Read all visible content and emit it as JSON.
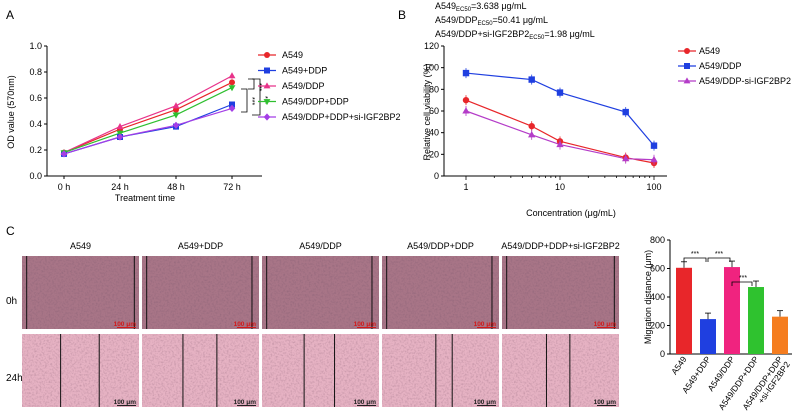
{
  "panels": {
    "A": "A",
    "B": "B",
    "C": "C"
  },
  "chart_data": [
    {
      "type": "line",
      "panel": "A",
      "ylabel": "OD value (570nm)",
      "xlabel": "Treatment time",
      "categories": [
        "0 h",
        "24 h",
        "48 h",
        "72 h"
      ],
      "ylim": [
        0.0,
        1.0
      ],
      "yticks": [
        "0.0",
        "0.2",
        "0.4",
        "0.6",
        "0.8",
        "1.0"
      ],
      "series": [
        {
          "name": "A549",
          "color": "#e8262a",
          "marker": "circle",
          "values": [
            0.18,
            0.36,
            0.51,
            0.72
          ]
        },
        {
          "name": "A549+DDP",
          "color": "#1f3fe0",
          "marker": "square",
          "values": [
            0.17,
            0.3,
            0.38,
            0.55
          ]
        },
        {
          "name": "A549/DDP",
          "color": "#e8338a",
          "marker": "triangle-up",
          "values": [
            0.18,
            0.38,
            0.54,
            0.77
          ]
        },
        {
          "name": "A549/DDP+DDP",
          "color": "#2fbf2f",
          "marker": "triangle-down",
          "values": [
            0.18,
            0.33,
            0.47,
            0.68
          ]
        },
        {
          "name": "A549/DDP+DDP+si-IGF2BP2",
          "color": "#a43ee6",
          "marker": "diamond",
          "values": [
            0.17,
            0.3,
            0.39,
            0.52
          ]
        }
      ],
      "annotations": [
        "***",
        "***",
        "***"
      ]
    },
    {
      "type": "line",
      "panel": "B",
      "ylabel": "Relative cell viability (%)",
      "xlabel": "Concentration (μg/mL)",
      "xscale": "log",
      "x": [
        1,
        5,
        10,
        50,
        100
      ],
      "xticks": [
        "1",
        "10",
        "100"
      ],
      "ylim": [
        0,
        120
      ],
      "yticks": [
        "0",
        "20",
        "40",
        "60",
        "80",
        "100",
        "120"
      ],
      "ec50_lines": [
        {
          "name": "A549",
          "sub": "EC50",
          "value": "=3.638 μg/mL"
        },
        {
          "name": "A549/DDP",
          "sub": "EC50",
          "value": "=50.41 μg/mL"
        },
        {
          "name": "A549/DDP+si-IGF2BP2",
          "sub": "EC50",
          "value": "=1.98 μg/mL"
        }
      ],
      "series": [
        {
          "name": "A549",
          "color": "#e8262a",
          "marker": "circle",
          "values": [
            70,
            46,
            32,
            17,
            12
          ]
        },
        {
          "name": "A549/DDP",
          "color": "#1f3fe0",
          "marker": "square",
          "values": [
            95,
            89,
            77,
            59,
            28
          ]
        },
        {
          "name": "A549/DDP-si-IGF2BP2",
          "color": "#b43cc8",
          "marker": "triangle-up",
          "values": [
            60,
            38,
            29,
            16,
            15
          ]
        }
      ]
    },
    {
      "type": "bar",
      "panel": "C",
      "ylabel": "Migration distance (μm)",
      "ylim": [
        0,
        800
      ],
      "yticks": [
        "0",
        "200",
        "400",
        "600",
        "800"
      ],
      "categories": [
        "A549",
        "A549+DDP",
        "A549/DDP",
        "A549/DDP+DDP",
        "A549/DDP+DDP+si-IGF2BP2"
      ],
      "category_labels": [
        [
          "A549"
        ],
        [
          "A549+DDP"
        ],
        [
          "A549/DDP"
        ],
        [
          "A549/DDP+DDP"
        ],
        [
          "A549/DDP+DDP",
          "+si-IGF2BP2"
        ]
      ],
      "values": [
        605,
        245,
        610,
        470,
        262
      ],
      "colors": [
        "#e8262a",
        "#1f3fe0",
        "#f0237f",
        "#2fc22f",
        "#f57d1f"
      ],
      "annotations": [
        "***",
        "***",
        "***"
      ]
    }
  ],
  "micrographs": {
    "columns": [
      "A549",
      "A549+DDP",
      "A549/DDP",
      "A549/DDP+DDP",
      "A549/DDP+DDP+si-IGF2BP2"
    ],
    "rows": [
      "0h",
      "24h"
    ],
    "scale_label": "100 μm"
  }
}
